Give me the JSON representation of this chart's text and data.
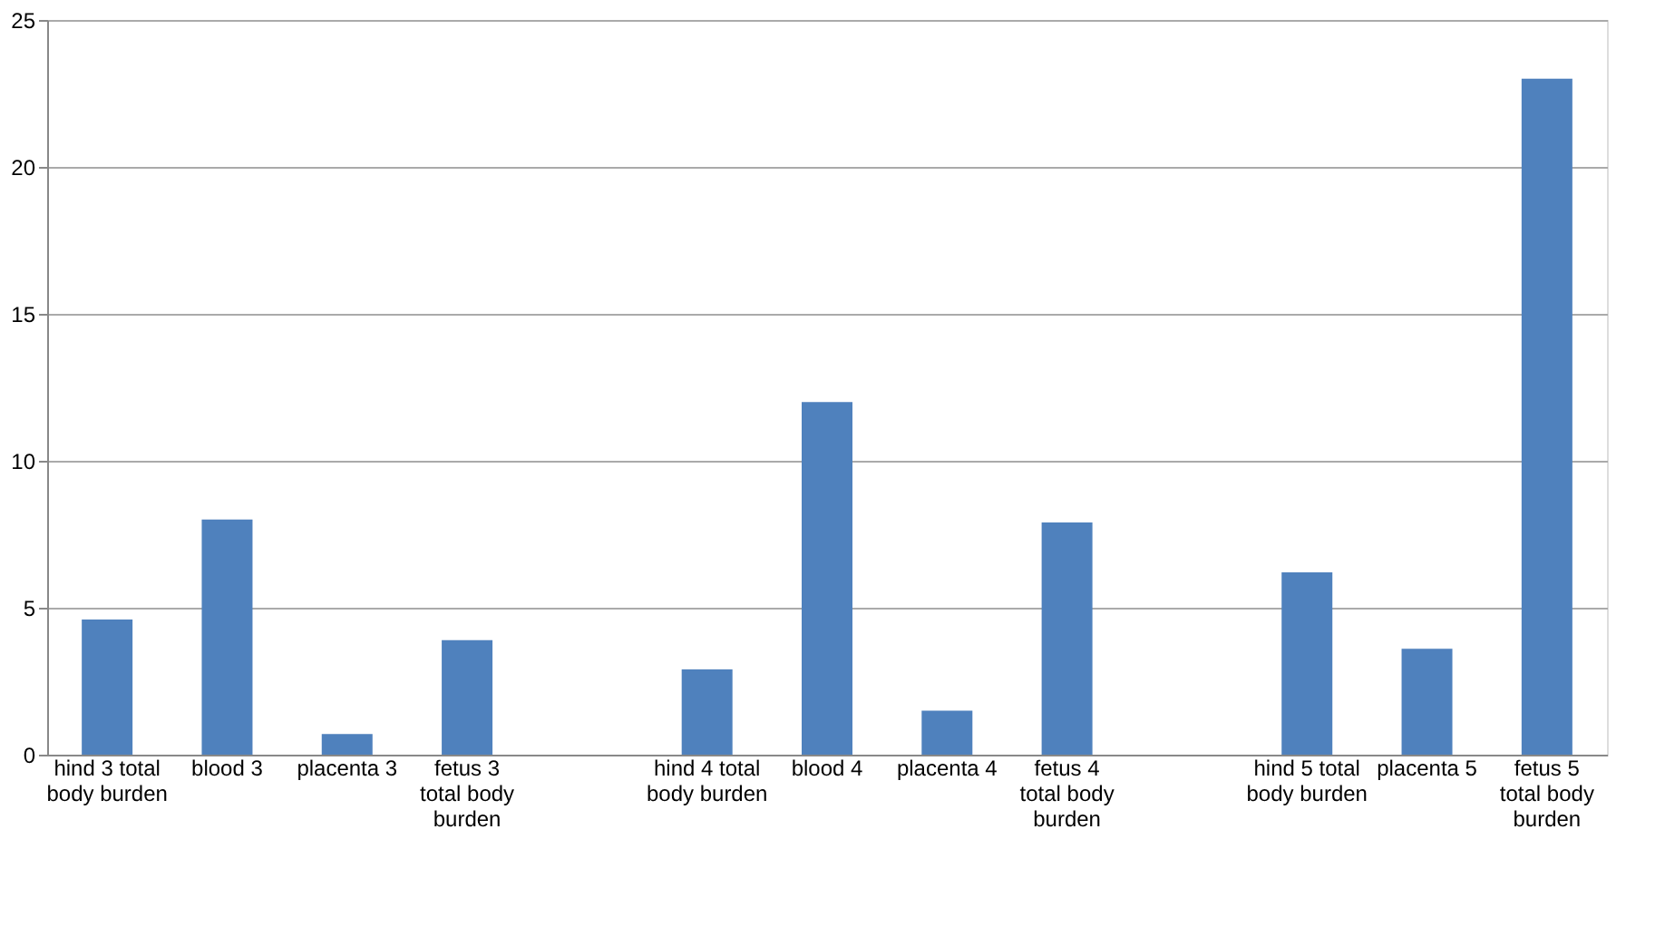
{
  "chart_data": {
    "type": "bar",
    "categories": [
      "hind 3 total body burden",
      "blood 3",
      "placenta 3",
      "fetus 3 total body burden",
      null,
      "hind 4 total body burden",
      "blood 4",
      "placenta 4",
      "fetus 4 total body burden",
      null,
      "hind 5 total body burden",
      "placenta 5",
      "fetus 5 total body burden"
    ],
    "series": [
      {
        "color": "#4f81bd",
        "values": [
          4.6,
          8.0,
          0.7,
          3.9,
          null,
          2.9,
          12.0,
          1.5,
          7.9,
          null,
          6.2,
          3.6,
          23.0
        ]
      }
    ],
    "ylim": [
      0,
      25
    ],
    "yticks": [
      0,
      5,
      10,
      15,
      20,
      25
    ],
    "grid": "y",
    "legend": false
  }
}
